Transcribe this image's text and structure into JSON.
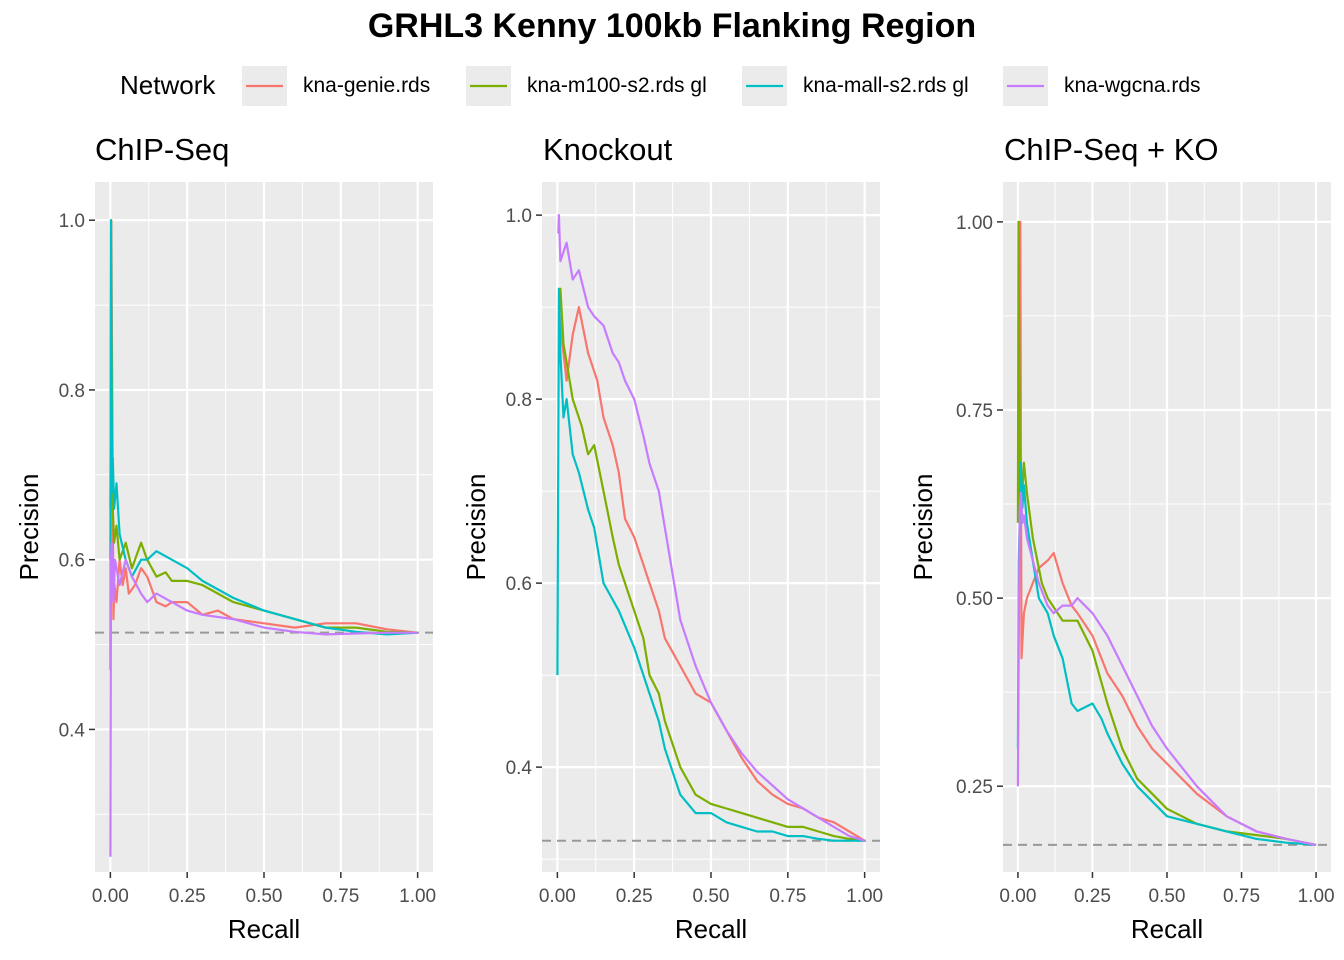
{
  "title": "GRHL3 Kenny 100kb Flanking Region",
  "legend": {
    "title": "Network",
    "position": "top",
    "items": [
      {
        "label": "kna-genie.rds",
        "color": "#F8766D"
      },
      {
        "label": "kna-m100-s2.rds gl",
        "color": "#7CAE00"
      },
      {
        "label": "kna-mall-s2.rds gl",
        "color": "#00BFC4"
      },
      {
        "label": "kna-wgcna.rds",
        "color": "#C77CFF"
      }
    ]
  },
  "colors": {
    "panel_background": "#EBEBEB",
    "grid": "#FFFFFF",
    "baseline": "#999999",
    "tick_text": "#4D4D4D"
  },
  "chart_data": [
    {
      "type": "line",
      "title": "ChIP-Seq",
      "xlabel": "Recall",
      "ylabel": "Precision",
      "xlim": [
        -0.05,
        1.05
      ],
      "ylim": [
        0.232,
        1.045
      ],
      "xticks": [
        0,
        0.25,
        0.5,
        0.75,
        1
      ],
      "xtick_labels": [
        "0.00",
        "0.25",
        "0.50",
        "0.75",
        "1.00"
      ],
      "yticks": [
        0.4,
        0.6,
        0.8,
        1.0
      ],
      "ytick_labels": [
        "0.4",
        "0.6",
        "0.8",
        "1.0"
      ],
      "grid": true,
      "baseline": 0.514,
      "series": [
        {
          "name": "kna-genie.rds",
          "x": [
            0,
            0.003,
            0.006,
            0.01,
            0.013,
            0.02,
            0.03,
            0.04,
            0.05,
            0.06,
            0.08,
            0.1,
            0.12,
            0.15,
            0.18,
            0.2,
            0.25,
            0.3,
            0.35,
            0.4,
            0.5,
            0.6,
            0.7,
            0.8,
            0.9,
            1.0
          ],
          "y": [
            0.66,
            1.0,
            0.8,
            0.53,
            0.57,
            0.55,
            0.6,
            0.57,
            0.59,
            0.56,
            0.57,
            0.59,
            0.58,
            0.55,
            0.545,
            0.55,
            0.55,
            0.535,
            0.54,
            0.53,
            0.525,
            0.52,
            0.525,
            0.525,
            0.518,
            0.514
          ]
        },
        {
          "name": "kna-m100-s2.rds gl",
          "x": [
            0,
            0.002,
            0.005,
            0.008,
            0.012,
            0.02,
            0.03,
            0.05,
            0.07,
            0.1,
            0.12,
            0.15,
            0.18,
            0.2,
            0.25,
            0.3,
            0.35,
            0.4,
            0.5,
            0.6,
            0.7,
            0.8,
            0.9,
            1.0
          ],
          "y": [
            0.6,
            1.0,
            0.8,
            0.66,
            0.62,
            0.64,
            0.6,
            0.62,
            0.59,
            0.62,
            0.6,
            0.58,
            0.585,
            0.575,
            0.575,
            0.57,
            0.56,
            0.55,
            0.54,
            0.53,
            0.52,
            0.52,
            0.515,
            0.514
          ]
        },
        {
          "name": "kna-mall-s2.rds gl",
          "x": [
            0,
            0.002,
            0.004,
            0.006,
            0.008,
            0.012,
            0.02,
            0.03,
            0.05,
            0.07,
            0.1,
            0.12,
            0.15,
            0.2,
            0.25,
            0.3,
            0.4,
            0.5,
            0.6,
            0.7,
            0.8,
            0.9,
            1.0
          ],
          "y": [
            0.47,
            1.0,
            0.8,
            0.68,
            0.72,
            0.66,
            0.69,
            0.63,
            0.6,
            0.58,
            0.6,
            0.6,
            0.61,
            0.6,
            0.59,
            0.575,
            0.555,
            0.54,
            0.53,
            0.52,
            0.515,
            0.512,
            0.514
          ]
        },
        {
          "name": "kna-wgcna.rds",
          "x": [
            0,
            0.002,
            0.004,
            0.007,
            0.01,
            0.015,
            0.02,
            0.03,
            0.05,
            0.07,
            0.1,
            0.12,
            0.15,
            0.2,
            0.25,
            0.3,
            0.4,
            0.5,
            0.6,
            0.7,
            0.8,
            0.9,
            1.0
          ],
          "y": [
            0.25,
            0.6,
            0.62,
            0.58,
            0.55,
            0.6,
            0.59,
            0.57,
            0.6,
            0.58,
            0.56,
            0.55,
            0.56,
            0.55,
            0.54,
            0.535,
            0.53,
            0.52,
            0.515,
            0.512,
            0.513,
            0.514,
            0.514
          ]
        }
      ]
    },
    {
      "type": "line",
      "title": "Knockout",
      "xlabel": "Recall",
      "ylabel": "Precision",
      "xlim": [
        -0.05,
        1.05
      ],
      "ylim": [
        0.286,
        1.036
      ],
      "xticks": [
        0,
        0.25,
        0.5,
        0.75,
        1
      ],
      "xtick_labels": [
        "0.00",
        "0.25",
        "0.50",
        "0.75",
        "1.00"
      ],
      "yticks": [
        0.4,
        0.6,
        0.8,
        1.0
      ],
      "ytick_labels": [
        "0.4",
        "0.6",
        "0.8",
        "1.0"
      ],
      "grid": true,
      "baseline": 0.32,
      "series": [
        {
          "name": "kna-genie.rds",
          "x": [
            0.005,
            0.01,
            0.02,
            0.03,
            0.05,
            0.07,
            0.1,
            0.13,
            0.15,
            0.18,
            0.2,
            0.22,
            0.25,
            0.28,
            0.3,
            0.33,
            0.35,
            0.4,
            0.45,
            0.5,
            0.55,
            0.6,
            0.65,
            0.7,
            0.75,
            0.8,
            0.85,
            0.9,
            0.95,
            1.0
          ],
          "y": [
            0.9,
            0.88,
            0.85,
            0.82,
            0.87,
            0.9,
            0.85,
            0.82,
            0.78,
            0.75,
            0.72,
            0.67,
            0.65,
            0.62,
            0.6,
            0.57,
            0.54,
            0.51,
            0.48,
            0.47,
            0.44,
            0.41,
            0.385,
            0.37,
            0.36,
            0.355,
            0.345,
            0.34,
            0.33,
            0.32
          ]
        },
        {
          "name": "kna-m100-s2.rds gl",
          "x": [
            0.005,
            0.01,
            0.02,
            0.03,
            0.05,
            0.08,
            0.1,
            0.12,
            0.15,
            0.18,
            0.2,
            0.22,
            0.25,
            0.28,
            0.3,
            0.33,
            0.35,
            0.4,
            0.45,
            0.5,
            0.55,
            0.6,
            0.65,
            0.7,
            0.75,
            0.8,
            0.85,
            0.9,
            0.95,
            1.0
          ],
          "y": [
            0.9,
            0.92,
            0.86,
            0.84,
            0.8,
            0.77,
            0.74,
            0.75,
            0.7,
            0.65,
            0.62,
            0.6,
            0.57,
            0.54,
            0.5,
            0.48,
            0.45,
            0.4,
            0.37,
            0.36,
            0.355,
            0.35,
            0.345,
            0.34,
            0.335,
            0.335,
            0.33,
            0.325,
            0.322,
            0.32
          ]
        },
        {
          "name": "kna-mall-s2.rds gl",
          "x": [
            0,
            0.003,
            0.005,
            0.01,
            0.02,
            0.03,
            0.05,
            0.07,
            0.1,
            0.12,
            0.15,
            0.2,
            0.25,
            0.3,
            0.33,
            0.35,
            0.38,
            0.4,
            0.45,
            0.5,
            0.55,
            0.6,
            0.65,
            0.7,
            0.75,
            0.8,
            0.85,
            0.9,
            0.95,
            1.0
          ],
          "y": [
            0.5,
            0.75,
            0.92,
            0.85,
            0.78,
            0.8,
            0.74,
            0.72,
            0.68,
            0.66,
            0.6,
            0.57,
            0.53,
            0.48,
            0.45,
            0.42,
            0.39,
            0.37,
            0.35,
            0.35,
            0.34,
            0.335,
            0.33,
            0.33,
            0.325,
            0.325,
            0.322,
            0.32,
            0.32,
            0.32
          ]
        },
        {
          "name": "kna-wgcna.rds",
          "x": [
            0.003,
            0.005,
            0.01,
            0.02,
            0.03,
            0.05,
            0.07,
            0.1,
            0.12,
            0.15,
            0.18,
            0.2,
            0.22,
            0.25,
            0.28,
            0.3,
            0.33,
            0.35,
            0.38,
            0.4,
            0.45,
            0.5,
            0.55,
            0.6,
            0.65,
            0.7,
            0.75,
            0.8,
            0.85,
            0.9,
            0.95,
            1.0
          ],
          "y": [
            0.98,
            1.0,
            0.95,
            0.96,
            0.97,
            0.93,
            0.94,
            0.9,
            0.89,
            0.88,
            0.85,
            0.84,
            0.82,
            0.8,
            0.76,
            0.73,
            0.7,
            0.66,
            0.6,
            0.56,
            0.51,
            0.47,
            0.44,
            0.415,
            0.395,
            0.38,
            0.365,
            0.355,
            0.345,
            0.335,
            0.325,
            0.32
          ]
        }
      ]
    },
    {
      "type": "line",
      "title": "ChIP-Seq + KO",
      "xlabel": "Recall",
      "ylabel": "Precision",
      "xlim": [
        -0.05,
        1.05
      ],
      "ylim": [
        0.136,
        1.053
      ],
      "xticks": [
        0,
        0.25,
        0.5,
        0.75,
        1
      ],
      "xtick_labels": [
        "0.00",
        "0.25",
        "0.50",
        "0.75",
        "1.00"
      ],
      "yticks": [
        0.25,
        0.5,
        0.75,
        1.0
      ],
      "ytick_labels": [
        "0.25",
        "0.50",
        "0.75",
        "1.00"
      ],
      "grid": true,
      "baseline": 0.172,
      "series": [
        {
          "name": "kna-genie.rds",
          "x": [
            0.003,
            0.008,
            0.012,
            0.02,
            0.03,
            0.05,
            0.07,
            0.1,
            0.12,
            0.15,
            0.18,
            0.2,
            0.25,
            0.3,
            0.35,
            0.4,
            0.45,
            0.5,
            0.6,
            0.7,
            0.8,
            0.9,
            1.0
          ],
          "y": [
            0.65,
            1.0,
            0.42,
            0.48,
            0.5,
            0.52,
            0.54,
            0.55,
            0.56,
            0.52,
            0.49,
            0.48,
            0.45,
            0.4,
            0.37,
            0.33,
            0.3,
            0.28,
            0.24,
            0.21,
            0.19,
            0.18,
            0.172
          ]
        },
        {
          "name": "kna-m100-s2.rds gl",
          "x": [
            0,
            0.002,
            0.005,
            0.008,
            0.012,
            0.02,
            0.03,
            0.05,
            0.08,
            0.1,
            0.15,
            0.2,
            0.25,
            0.3,
            0.35,
            0.4,
            0.45,
            0.5,
            0.6,
            0.7,
            0.8,
            0.9,
            1.0
          ],
          "y": [
            0.6,
            1.0,
            0.8,
            0.6,
            0.62,
            0.68,
            0.64,
            0.58,
            0.52,
            0.5,
            0.47,
            0.47,
            0.43,
            0.36,
            0.3,
            0.26,
            0.24,
            0.22,
            0.2,
            0.19,
            0.185,
            0.18,
            0.172
          ]
        },
        {
          "name": "kna-mall-s2.rds gl",
          "x": [
            0,
            0.003,
            0.006,
            0.01,
            0.015,
            0.02,
            0.03,
            0.05,
            0.07,
            0.1,
            0.12,
            0.15,
            0.18,
            0.2,
            0.25,
            0.28,
            0.3,
            0.35,
            0.4,
            0.45,
            0.5,
            0.6,
            0.7,
            0.8,
            0.9,
            1.0
          ],
          "y": [
            0.3,
            0.55,
            0.6,
            0.68,
            0.62,
            0.65,
            0.6,
            0.55,
            0.5,
            0.48,
            0.45,
            0.42,
            0.36,
            0.35,
            0.36,
            0.34,
            0.32,
            0.28,
            0.25,
            0.23,
            0.21,
            0.2,
            0.19,
            0.18,
            0.175,
            0.172
          ]
        },
        {
          "name": "kna-wgcna.rds",
          "x": [
            0,
            0.003,
            0.006,
            0.01,
            0.015,
            0.02,
            0.03,
            0.05,
            0.07,
            0.1,
            0.12,
            0.15,
            0.18,
            0.2,
            0.25,
            0.3,
            0.35,
            0.4,
            0.45,
            0.5,
            0.6,
            0.7,
            0.8,
            0.9,
            1.0
          ],
          "y": [
            0.25,
            0.45,
            0.62,
            0.64,
            0.6,
            0.61,
            0.58,
            0.55,
            0.52,
            0.49,
            0.48,
            0.49,
            0.49,
            0.5,
            0.48,
            0.45,
            0.41,
            0.37,
            0.33,
            0.3,
            0.25,
            0.21,
            0.19,
            0.18,
            0.172
          ]
        }
      ]
    }
  ]
}
